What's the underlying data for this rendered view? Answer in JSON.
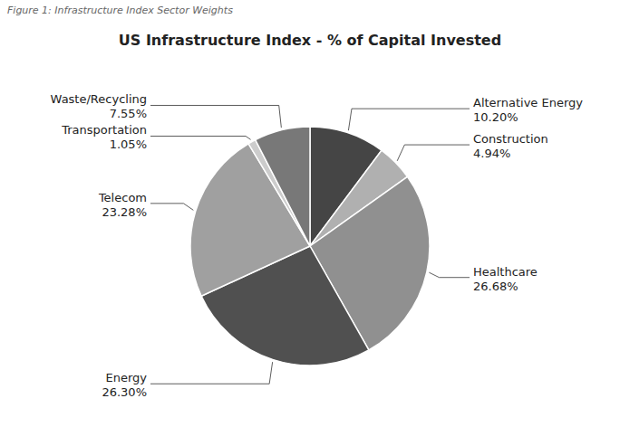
{
  "chart_data": {
    "type": "pie",
    "title": "US Infrastructure Index - % of Capital Invested",
    "subtitle": "Figure 1: Infrastructure Index Sector Weights",
    "categories": [
      "Alternative Energy",
      "Construction",
      "Healthcare",
      "Energy",
      "Telecom",
      "Transportation",
      "Waste/Recycling"
    ],
    "values": [
      10.2,
      4.94,
      26.68,
      26.3,
      23.28,
      1.05,
      7.55
    ],
    "value_labels": [
      "10.20%",
      "4.94%",
      "26.68%",
      "26.30%",
      "23.28%",
      "1.05%",
      "7.55%"
    ],
    "colors": [
      "#454545",
      "#b0b0b0",
      "#909090",
      "#505050",
      "#a0a0a0",
      "#cccccc",
      "#787878"
    ],
    "data_labels": true
  }
}
